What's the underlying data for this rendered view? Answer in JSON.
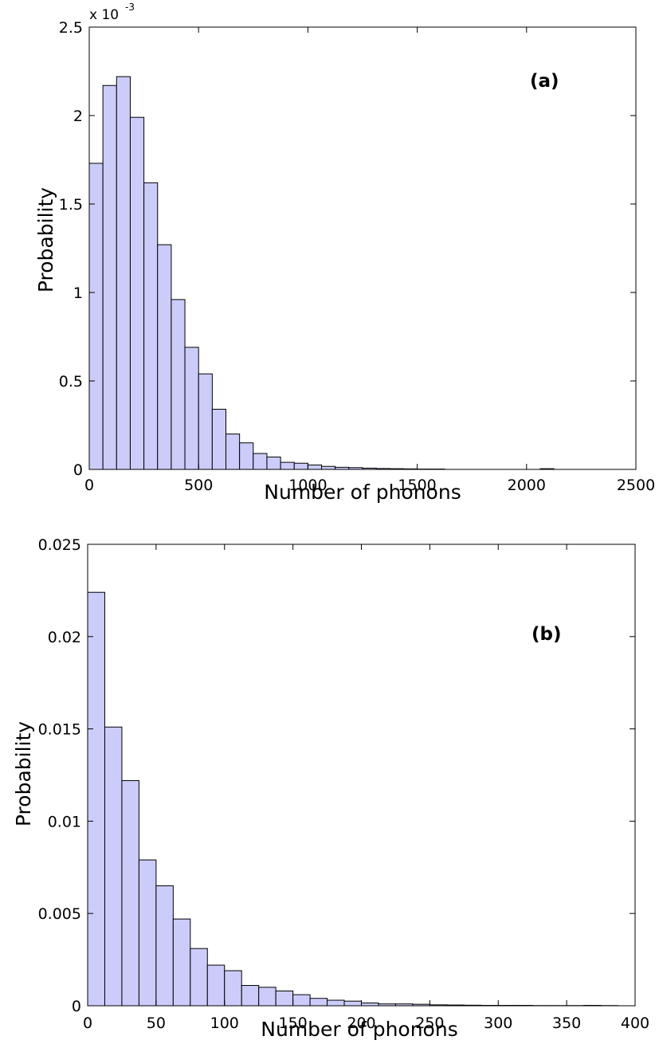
{
  "chart_data": [
    {
      "type": "bar",
      "panel_label": "(a)",
      "xlabel": "Number of phonons",
      "ylabel": "Probability",
      "y_scale_label": "x 10",
      "y_scale_exponent": "-3",
      "xlim": [
        0,
        2500
      ],
      "ylim": [
        0,
        2.5
      ],
      "x_ticks": [
        0,
        500,
        1000,
        1500,
        2000,
        2500
      ],
      "y_ticks": [
        0,
        0.5,
        1,
        1.5,
        2,
        2.5
      ],
      "x_tick_labels": [
        "0",
        "500",
        "1000",
        "1500",
        "2000",
        "2500"
      ],
      "y_tick_labels": [
        "0",
        "0.5",
        "1",
        "1.5",
        "2",
        "2.5"
      ],
      "bin_width": 62.5,
      "bin_starts": [
        0,
        62.5,
        125,
        187.5,
        250,
        312.5,
        375,
        437.5,
        500,
        562.5,
        625,
        687.5,
        750,
        812.5,
        875,
        937.5,
        1000,
        1062.5,
        1125,
        1187.5,
        1250,
        1312.5,
        1375,
        1437.5,
        1500,
        1562.5,
        2062.5
      ],
      "values": [
        1.73,
        2.17,
        2.22,
        1.99,
        1.62,
        1.27,
        0.96,
        0.69,
        0.54,
        0.34,
        0.2,
        0.15,
        0.09,
        0.07,
        0.04,
        0.035,
        0.025,
        0.017,
        0.012,
        0.01,
        0.007,
        0.005,
        0.004,
        0.003,
        0.002,
        0.002,
        0.004
      ],
      "value_unit": "x 10^-3",
      "bar_color": "#ccccfa",
      "edge_color": "#000000",
      "grid": false
    },
    {
      "type": "bar",
      "panel_label": "(b)",
      "xlabel": "Number of phonons",
      "ylabel": "Probability",
      "xlim": [
        0,
        400
      ],
      "ylim": [
        0,
        0.025
      ],
      "x_ticks": [
        0,
        50,
        100,
        150,
        200,
        250,
        300,
        350,
        400
      ],
      "y_ticks": [
        0,
        0.005,
        0.01,
        0.015,
        0.02,
        0.025
      ],
      "x_tick_labels": [
        "0",
        "50",
        "100",
        "150",
        "200",
        "250",
        "300",
        "350",
        "400"
      ],
      "y_tick_labels": [
        "0",
        "0.005",
        "0.01",
        "0.015",
        "0.02",
        "0.025"
      ],
      "bin_width": 12.5,
      "bin_starts": [
        0,
        12.5,
        25,
        37.5,
        50,
        62.5,
        75,
        87.5,
        100,
        112.5,
        125,
        137.5,
        150,
        162.5,
        175,
        187.5,
        200,
        212.5,
        225,
        237.5,
        250,
        262.5,
        275,
        287.5,
        300,
        312.5,
        325,
        337.5,
        350,
        362.5,
        375
      ],
      "values": [
        0.0224,
        0.0151,
        0.0122,
        0.0079,
        0.0065,
        0.0047,
        0.0031,
        0.0022,
        0.0019,
        0.0011,
        0.001,
        0.0008,
        0.0006,
        0.0004,
        0.0003,
        0.00025,
        0.00015,
        0.0001,
        0.0001,
        8e-05,
        5e-05,
        4e-05,
        3e-05,
        2e-05,
        2e-05,
        2e-05,
        1e-05,
        1e-05,
        1e-05,
        2e-05,
        1e-05
      ],
      "bar_color": "#ccccfa",
      "edge_color": "#000000",
      "grid": false
    }
  ]
}
